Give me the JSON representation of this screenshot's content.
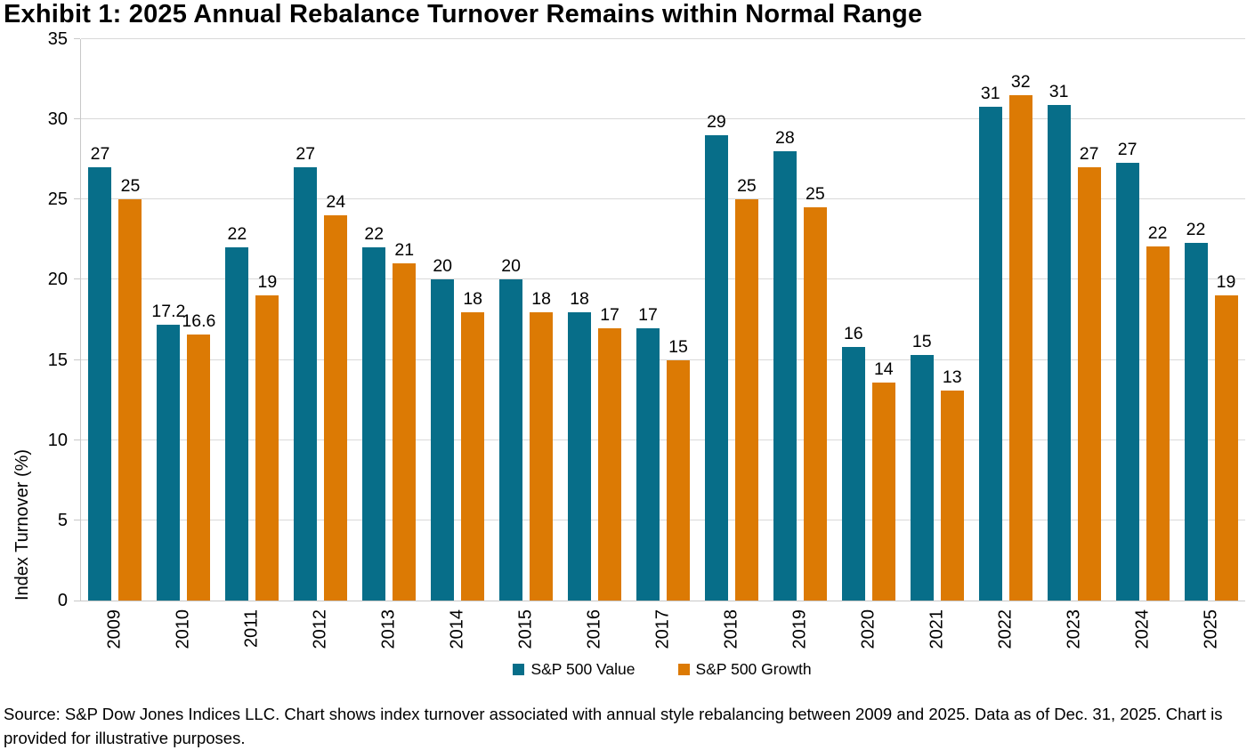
{
  "title": "Exhibit 1: 2025 Annual Rebalance Turnover Remains within Normal Range",
  "source_note": "Source: S&P Dow Jones Indices LLC. Chart shows index turnover associated with annual style rebalancing between 2009 and 2025. Data as of Dec. 31, 2025. Chart is provided for illustrative purposes.",
  "colors": {
    "value_series": "#076e89",
    "growth_series": "#dc7a04",
    "gridline": "#d9d9d9",
    "axis_line": "#c8c8c8",
    "text": "#000000"
  },
  "chart_data": {
    "type": "bar",
    "title": "Exhibit 1: 2025 Annual Rebalance Turnover Remains within Normal Range",
    "xlabel": "",
    "ylabel": "Index Turnover (%)",
    "ylim": [
      0,
      35
    ],
    "yticks": [
      0,
      5,
      10,
      15,
      20,
      25,
      30,
      35
    ],
    "grid": true,
    "legend_position": "bottom",
    "categories": [
      "2009",
      "2010",
      "2011",
      "2012",
      "2013",
      "2014",
      "2015",
      "2016",
      "2017",
      "2018",
      "2019",
      "2020",
      "2021",
      "2022",
      "2023",
      "2024",
      "2025"
    ],
    "series": [
      {
        "name": "S&P 500 Value",
        "color": "#076e89",
        "values": [
          27,
          17.2,
          22,
          27,
          22,
          20,
          20,
          18,
          17,
          29,
          28,
          15.8,
          15.3,
          30.8,
          30.9,
          27.3,
          22.3
        ],
        "labels": [
          "27",
          "17.2",
          "22",
          "27",
          "22",
          "20",
          "20",
          "18",
          "17",
          "29",
          "28",
          "16",
          "15",
          "31",
          "31",
          "27",
          "22"
        ]
      },
      {
        "name": "S&P 500 Growth",
        "color": "#dc7a04",
        "values": [
          25,
          16.6,
          19,
          24,
          21,
          18,
          18,
          17,
          15,
          25,
          24.5,
          13.6,
          13.1,
          31.5,
          27,
          22.1,
          19
        ],
        "labels": [
          "25",
          "16.6",
          "19",
          "24",
          "21",
          "18",
          "18",
          "17",
          "15",
          "25",
          "25",
          "14",
          "13",
          "32",
          "27",
          "22",
          "19"
        ]
      }
    ]
  }
}
